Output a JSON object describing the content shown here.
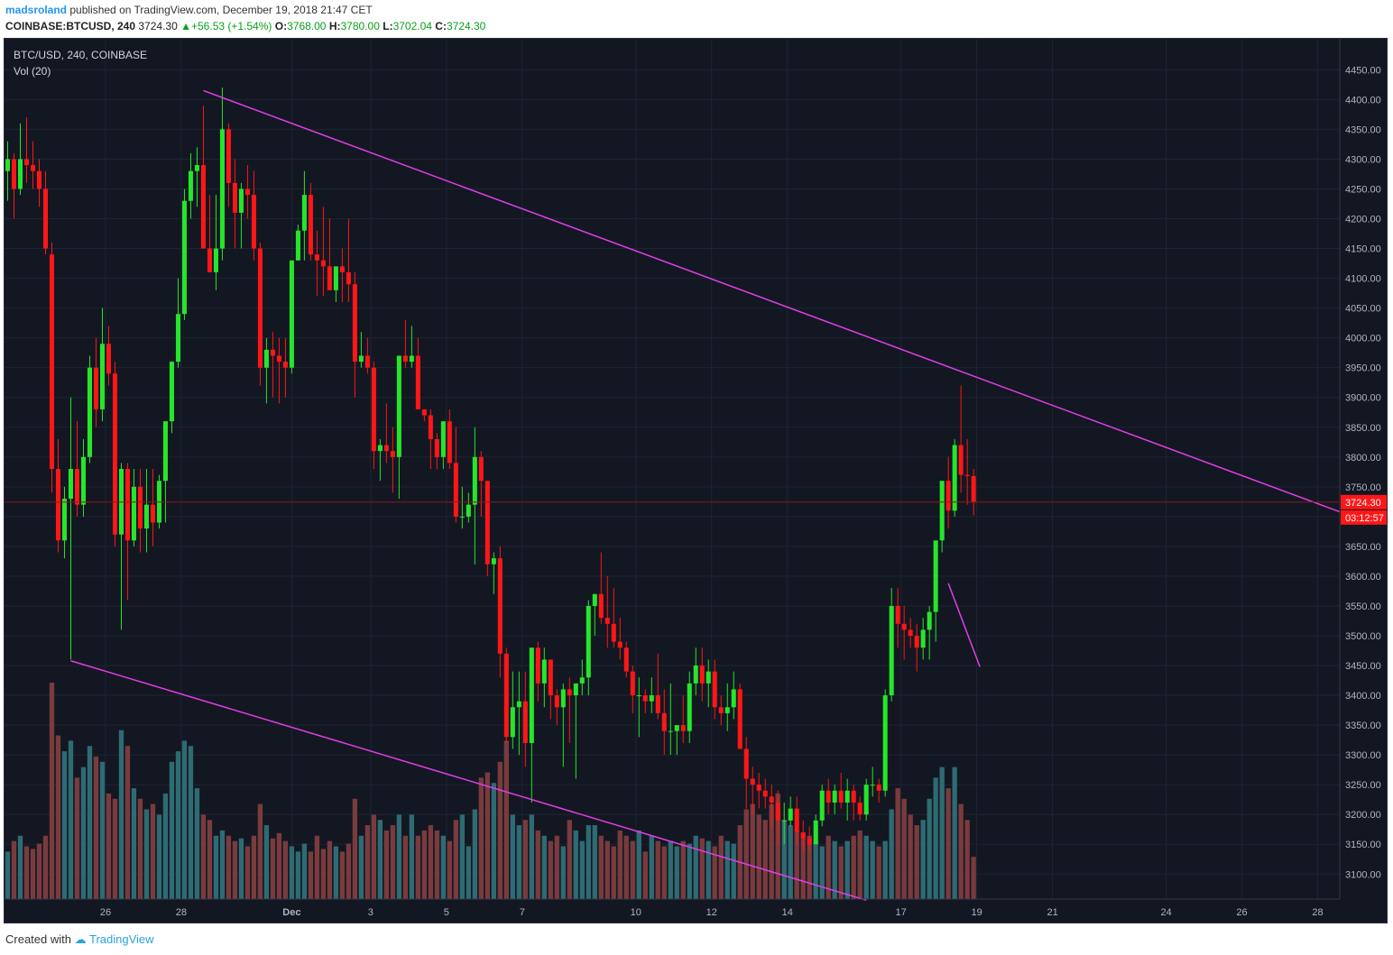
{
  "header": {
    "author": "madsroland",
    "published_text": "published on TradingView.com, December 19, 2018 21:47 CET",
    "symbol": "COINBASE:BTCUSD, 240",
    "last": "3724.30",
    "change": "+56.53 (+1.54%)",
    "o_label": "O:",
    "o_value": "3768.00",
    "h_label": "H:",
    "h_value": "3780.00",
    "l_label": "L:",
    "l_value": "3702.04",
    "c_label": "C:",
    "c_value": "3724.30"
  },
  "pane": {
    "title": "BTC/USD, 240, COINBASE",
    "volume_label": "Vol (20)"
  },
  "price_tag": "3724.30",
  "countdown_tag": "03:12:57",
  "footer": {
    "created_with": "Created with",
    "brand": "TradingView"
  },
  "colors": {
    "background": "#131722",
    "grid": "#1f2433",
    "up": "#26e62b",
    "down": "#ff1717",
    "vol_up": "#2e6b73",
    "vol_down": "#7a3b3e",
    "trendline": "#e23ee8",
    "price_line": "#8a1a1a",
    "axis_text": "#b2b5be"
  },
  "chart_data": {
    "type": "candlestick",
    "timeframe": "240",
    "y_ticks": [
      3100,
      3150,
      3200,
      3250,
      3300,
      3350,
      3400,
      3450,
      3500,
      3550,
      3600,
      3650,
      3700,
      3750,
      3800,
      3850,
      3900,
      3950,
      4000,
      4050,
      4100,
      4150,
      4200,
      4250,
      4300,
      4350,
      4400,
      4450
    ],
    "y_tick_labels": [
      "3100.00",
      "3150.00",
      "3200.00",
      "3250.00",
      "3300.00",
      "3350.00",
      "3400.00",
      "3450.00",
      "3500.00",
      "3550.00",
      "3600.00",
      "3650.00",
      "3700.00",
      "3750.00",
      "3800.00",
      "3850.00",
      "3900.00",
      "3950.00",
      "4000.00",
      "4050.00",
      "4100.00",
      "4150.00",
      "4200.00",
      "4250.00",
      "4300.00",
      "4350.00",
      "4400.00",
      "4450.00"
    ],
    "x_ticks": [
      {
        "label": "26",
        "bar": 15.5
      },
      {
        "label": "28",
        "bar": 27.5
      },
      {
        "label": "Dec",
        "bar": 45
      },
      {
        "label": "3",
        "bar": 57.5
      },
      {
        "label": "5",
        "bar": 69.5
      },
      {
        "label": "7",
        "bar": 81.5
      },
      {
        "label": "10",
        "bar": 99.5
      },
      {
        "label": "12",
        "bar": 111.5
      },
      {
        "label": "14",
        "bar": 123.5
      },
      {
        "label": "17",
        "bar": 141.5
      },
      {
        "label": "19",
        "bar": 153.5
      },
      {
        "label": "21",
        "bar": 165.5
      },
      {
        "label": "24",
        "bar": 183.5
      },
      {
        "label": "26",
        "bar": 195.5
      },
      {
        "label": "28",
        "bar": 207.5
      }
    ],
    "bar_domain": [
      -0.5,
      211
    ],
    "price_domain": [
      3058,
      4502
    ],
    "last_price": 3724.3,
    "ohlcv": [
      [
        4280,
        4330,
        4230,
        4300,
        90
      ],
      [
        4300,
        4310,
        4200,
        4250,
        110
      ],
      [
        4250,
        4360,
        4240,
        4300,
        120
      ],
      [
        4300,
        4370,
        4260,
        4290,
        100
      ],
      [
        4290,
        4330,
        4250,
        4280,
        95
      ],
      [
        4280,
        4300,
        4220,
        4250,
        105
      ],
      [
        4250,
        4280,
        4140,
        4150,
        120
      ],
      [
        4140,
        4160,
        3740,
        3780,
        410
      ],
      [
        3780,
        3830,
        3640,
        3660,
        310
      ],
      [
        3660,
        3750,
        3630,
        3730,
        280
      ],
      [
        3730,
        3900,
        3460,
        3780,
        300
      ],
      [
        3780,
        3860,
        3700,
        3720,
        230
      ],
      [
        3720,
        3830,
        3700,
        3800,
        250
      ],
      [
        3800,
        3970,
        3790,
        3950,
        290
      ],
      [
        3950,
        4000,
        3850,
        3880,
        270
      ],
      [
        3880,
        4050,
        3860,
        3990,
        260
      ],
      [
        3990,
        4020,
        3920,
        3940,
        200
      ],
      [
        3940,
        3960,
        3650,
        3670,
        190
      ],
      [
        3670,
        3790,
        3510,
        3780,
        320
      ],
      [
        3780,
        3790,
        3560,
        3660,
        290
      ],
      [
        3660,
        3780,
        3650,
        3750,
        210
      ],
      [
        3750,
        3780,
        3640,
        3680,
        190
      ],
      [
        3680,
        3780,
        3640,
        3720,
        170
      ],
      [
        3720,
        3780,
        3650,
        3690,
        180
      ],
      [
        3690,
        3770,
        3680,
        3760,
        160
      ],
      [
        3760,
        3810,
        3690,
        3860,
        200
      ],
      [
        3860,
        3960,
        3840,
        3960,
        260
      ],
      [
        3960,
        4100,
        3950,
        4040,
        280
      ],
      [
        4040,
        4250,
        4030,
        4230,
        300
      ],
      [
        4230,
        4310,
        4200,
        4280,
        290
      ],
      [
        4280,
        4320,
        4220,
        4290,
        210
      ],
      [
        4290,
        4390,
        4180,
        4150,
        160
      ],
      [
        4150,
        4240,
        4130,
        4110,
        150
      ],
      [
        4110,
        4240,
        4080,
        4150,
        120
      ],
      [
        4150,
        4420,
        4130,
        4350,
        130
      ],
      [
        4350,
        4360,
        4220,
        4260,
        120
      ],
      [
        4260,
        4300,
        4150,
        4210,
        110
      ],
      [
        4210,
        4260,
        4150,
        4250,
        115
      ],
      [
        4250,
        4290,
        4200,
        4240,
        100
      ],
      [
        4240,
        4280,
        4130,
        4150,
        120
      ],
      [
        4150,
        4160,
        3920,
        3950,
        180
      ],
      [
        3950,
        4000,
        3890,
        3980,
        140
      ],
      [
        3980,
        4010,
        3900,
        3970,
        115
      ],
      [
        3970,
        4000,
        3890,
        3960,
        125
      ],
      [
        3960,
        4000,
        3900,
        3950,
        110
      ],
      [
        3950,
        4110,
        3940,
        4130,
        100
      ],
      [
        4130,
        4190,
        4140,
        4180,
        90
      ],
      [
        4180,
        4280,
        4130,
        4240,
        105
      ],
      [
        4240,
        4260,
        4130,
        4140,
        90
      ],
      [
        4140,
        4180,
        4070,
        4130,
        120
      ],
      [
        4130,
        4220,
        4070,
        4120,
        95
      ],
      [
        4120,
        4200,
        4080,
        4080,
        110
      ],
      [
        4080,
        4110,
        4060,
        4120,
        100
      ],
      [
        4120,
        4150,
        4060,
        4110,
        90
      ],
      [
        4110,
        4200,
        4060,
        4090,
        105
      ],
      [
        4090,
        4110,
        3900,
        3960,
        190
      ],
      [
        3960,
        4010,
        3950,
        3970,
        120
      ],
      [
        3970,
        4000,
        3940,
        3950,
        140
      ],
      [
        3950,
        3960,
        3780,
        3810,
        160
      ],
      [
        3810,
        3830,
        3760,
        3820,
        150
      ],
      [
        3820,
        3890,
        3790,
        3810,
        130
      ],
      [
        3810,
        3850,
        3740,
        3800,
        140
      ],
      [
        3800,
        3970,
        3730,
        3970,
        160
      ],
      [
        3970,
        4030,
        3950,
        3960,
        120
      ],
      [
        3960,
        4020,
        3950,
        3970,
        160
      ],
      [
        3970,
        4000,
        3890,
        3880,
        120
      ],
      [
        3880,
        3880,
        3860,
        3870,
        130
      ],
      [
        3870,
        3880,
        3780,
        3830,
        140
      ],
      [
        3830,
        3840,
        3780,
        3800,
        130
      ],
      [
        3800,
        3830,
        3780,
        3860,
        120
      ],
      [
        3860,
        3880,
        3780,
        3790,
        110
      ],
      [
        3790,
        3850,
        3690,
        3700,
        150
      ],
      [
        3700,
        3750,
        3680,
        3700,
        160
      ],
      [
        3700,
        3740,
        3690,
        3720,
        100
      ],
      [
        3720,
        3850,
        3620,
        3800,
        170
      ],
      [
        3800,
        3810,
        3700,
        3760,
        230
      ],
      [
        3760,
        3760,
        3600,
        3620,
        240
      ],
      [
        3620,
        3640,
        3570,
        3630,
        220
      ],
      [
        3630,
        3650,
        3430,
        3470,
        260
      ],
      [
        3470,
        3480,
        3320,
        3330,
        300
      ],
      [
        3330,
        3440,
        3310,
        3380,
        160
      ],
      [
        3380,
        3440,
        3300,
        3390,
        140
      ],
      [
        3390,
        3440,
        3280,
        3320,
        150
      ],
      [
        3320,
        3470,
        3220,
        3480,
        160
      ],
      [
        3480,
        3490,
        3390,
        3420,
        130
      ],
      [
        3420,
        3480,
        3380,
        3460,
        120
      ],
      [
        3460,
        3460,
        3360,
        3400,
        110
      ],
      [
        3400,
        3410,
        3350,
        3380,
        120
      ],
      [
        3380,
        3420,
        3280,
        3410,
        100
      ],
      [
        3410,
        3430,
        3320,
        3400,
        150
      ],
      [
        3400,
        3420,
        3260,
        3420,
        130
      ],
      [
        3420,
        3460,
        3400,
        3430,
        110
      ],
      [
        3430,
        3560,
        3400,
        3550,
        140
      ],
      [
        3550,
        3570,
        3500,
        3570,
        140
      ],
      [
        3570,
        3640,
        3520,
        3530,
        120
      ],
      [
        3530,
        3600,
        3480,
        3520,
        110
      ],
      [
        3520,
        3580,
        3480,
        3490,
        100
      ],
      [
        3490,
        3530,
        3460,
        3480,
        130
      ],
      [
        3480,
        3490,
        3430,
        3440,
        120
      ],
      [
        3440,
        3450,
        3370,
        3400,
        110
      ],
      [
        3400,
        3430,
        3330,
        3400,
        130
      ],
      [
        3400,
        3410,
        3370,
        3390,
        90
      ],
      [
        3390,
        3430,
        3370,
        3400,
        120
      ],
      [
        3400,
        3470,
        3360,
        3370,
        110
      ],
      [
        3370,
        3410,
        3300,
        3340,
        100
      ],
      [
        3340,
        3420,
        3300,
        3340,
        110
      ],
      [
        3340,
        3350,
        3300,
        3350,
        100
      ],
      [
        3350,
        3400,
        3320,
        3340,
        110
      ],
      [
        3340,
        3440,
        3320,
        3420,
        105
      ],
      [
        3420,
        3480,
        3400,
        3450,
        120
      ],
      [
        3450,
        3480,
        3390,
        3420,
        115
      ],
      [
        3420,
        3460,
        3380,
        3440,
        110
      ],
      [
        3440,
        3460,
        3360,
        3380,
        100
      ],
      [
        3380,
        3400,
        3350,
        3370,
        120
      ],
      [
        3370,
        3420,
        3340,
        3380,
        110
      ],
      [
        3380,
        3440,
        3360,
        3410,
        105
      ],
      [
        3410,
        3420,
        3330,
        3310,
        140
      ],
      [
        3310,
        3330,
        3210,
        3260,
        170
      ],
      [
        3260,
        3280,
        3200,
        3250,
        180
      ],
      [
        3250,
        3270,
        3210,
        3240,
        160
      ],
      [
        3240,
        3260,
        3210,
        3230,
        150
      ],
      [
        3230,
        3250,
        3180,
        3220,
        180
      ],
      [
        3220,
        3240,
        3150,
        3190,
        200
      ],
      [
        3190,
        3220,
        3150,
        3190,
        150
      ],
      [
        3190,
        3230,
        3180,
        3210,
        140
      ],
      [
        3210,
        3230,
        3150,
        3170,
        130
      ],
      [
        3170,
        3190,
        3140,
        3160,
        125
      ],
      [
        3160,
        3180,
        3140,
        3150,
        120
      ],
      [
        3150,
        3200,
        3160,
        3190,
        110
      ],
      [
        3190,
        3250,
        3180,
        3240,
        100
      ],
      [
        3240,
        3260,
        3200,
        3220,
        120
      ],
      [
        3220,
        3250,
        3200,
        3240,
        110
      ],
      [
        3240,
        3270,
        3210,
        3220,
        100
      ],
      [
        3220,
        3260,
        3190,
        3240,
        110
      ],
      [
        3240,
        3250,
        3190,
        3220,
        120
      ],
      [
        3220,
        3230,
        3190,
        3200,
        130
      ],
      [
        3200,
        3260,
        3190,
        3250,
        120
      ],
      [
        3250,
        3280,
        3230,
        3250,
        110
      ],
      [
        3250,
        3260,
        3220,
        3240,
        100
      ],
      [
        3240,
        3410,
        3230,
        3400,
        110
      ],
      [
        3400,
        3580,
        3390,
        3550,
        170
      ],
      [
        3550,
        3580,
        3480,
        3520,
        210
      ],
      [
        3520,
        3550,
        3460,
        3510,
        190
      ],
      [
        3510,
        3530,
        3480,
        3500,
        160
      ],
      [
        3500,
        3520,
        3440,
        3480,
        140
      ],
      [
        3480,
        3530,
        3460,
        3510,
        150
      ],
      [
        3510,
        3550,
        3460,
        3540,
        190
      ],
      [
        3540,
        3600,
        3490,
        3660,
        230
      ],
      [
        3660,
        3760,
        3640,
        3760,
        250
      ],
      [
        3760,
        3800,
        3680,
        3710,
        210
      ],
      [
        3710,
        3830,
        3700,
        3820,
        250
      ],
      [
        3820,
        3920,
        3740,
        3770,
        180
      ],
      [
        3770,
        3830,
        3720,
        3768,
        150
      ],
      [
        3768,
        3780,
        3702,
        3724.3,
        80
      ]
    ],
    "trendlines": [
      {
        "from": [
          31,
          4415
        ],
        "to": [
          211,
          3708
        ]
      },
      {
        "from": [
          10,
          3458
        ],
        "to": [
          136,
          3056
        ]
      },
      {
        "from": [
          149,
          3588
        ],
        "to": [
          154,
          3448
        ]
      }
    ]
  }
}
